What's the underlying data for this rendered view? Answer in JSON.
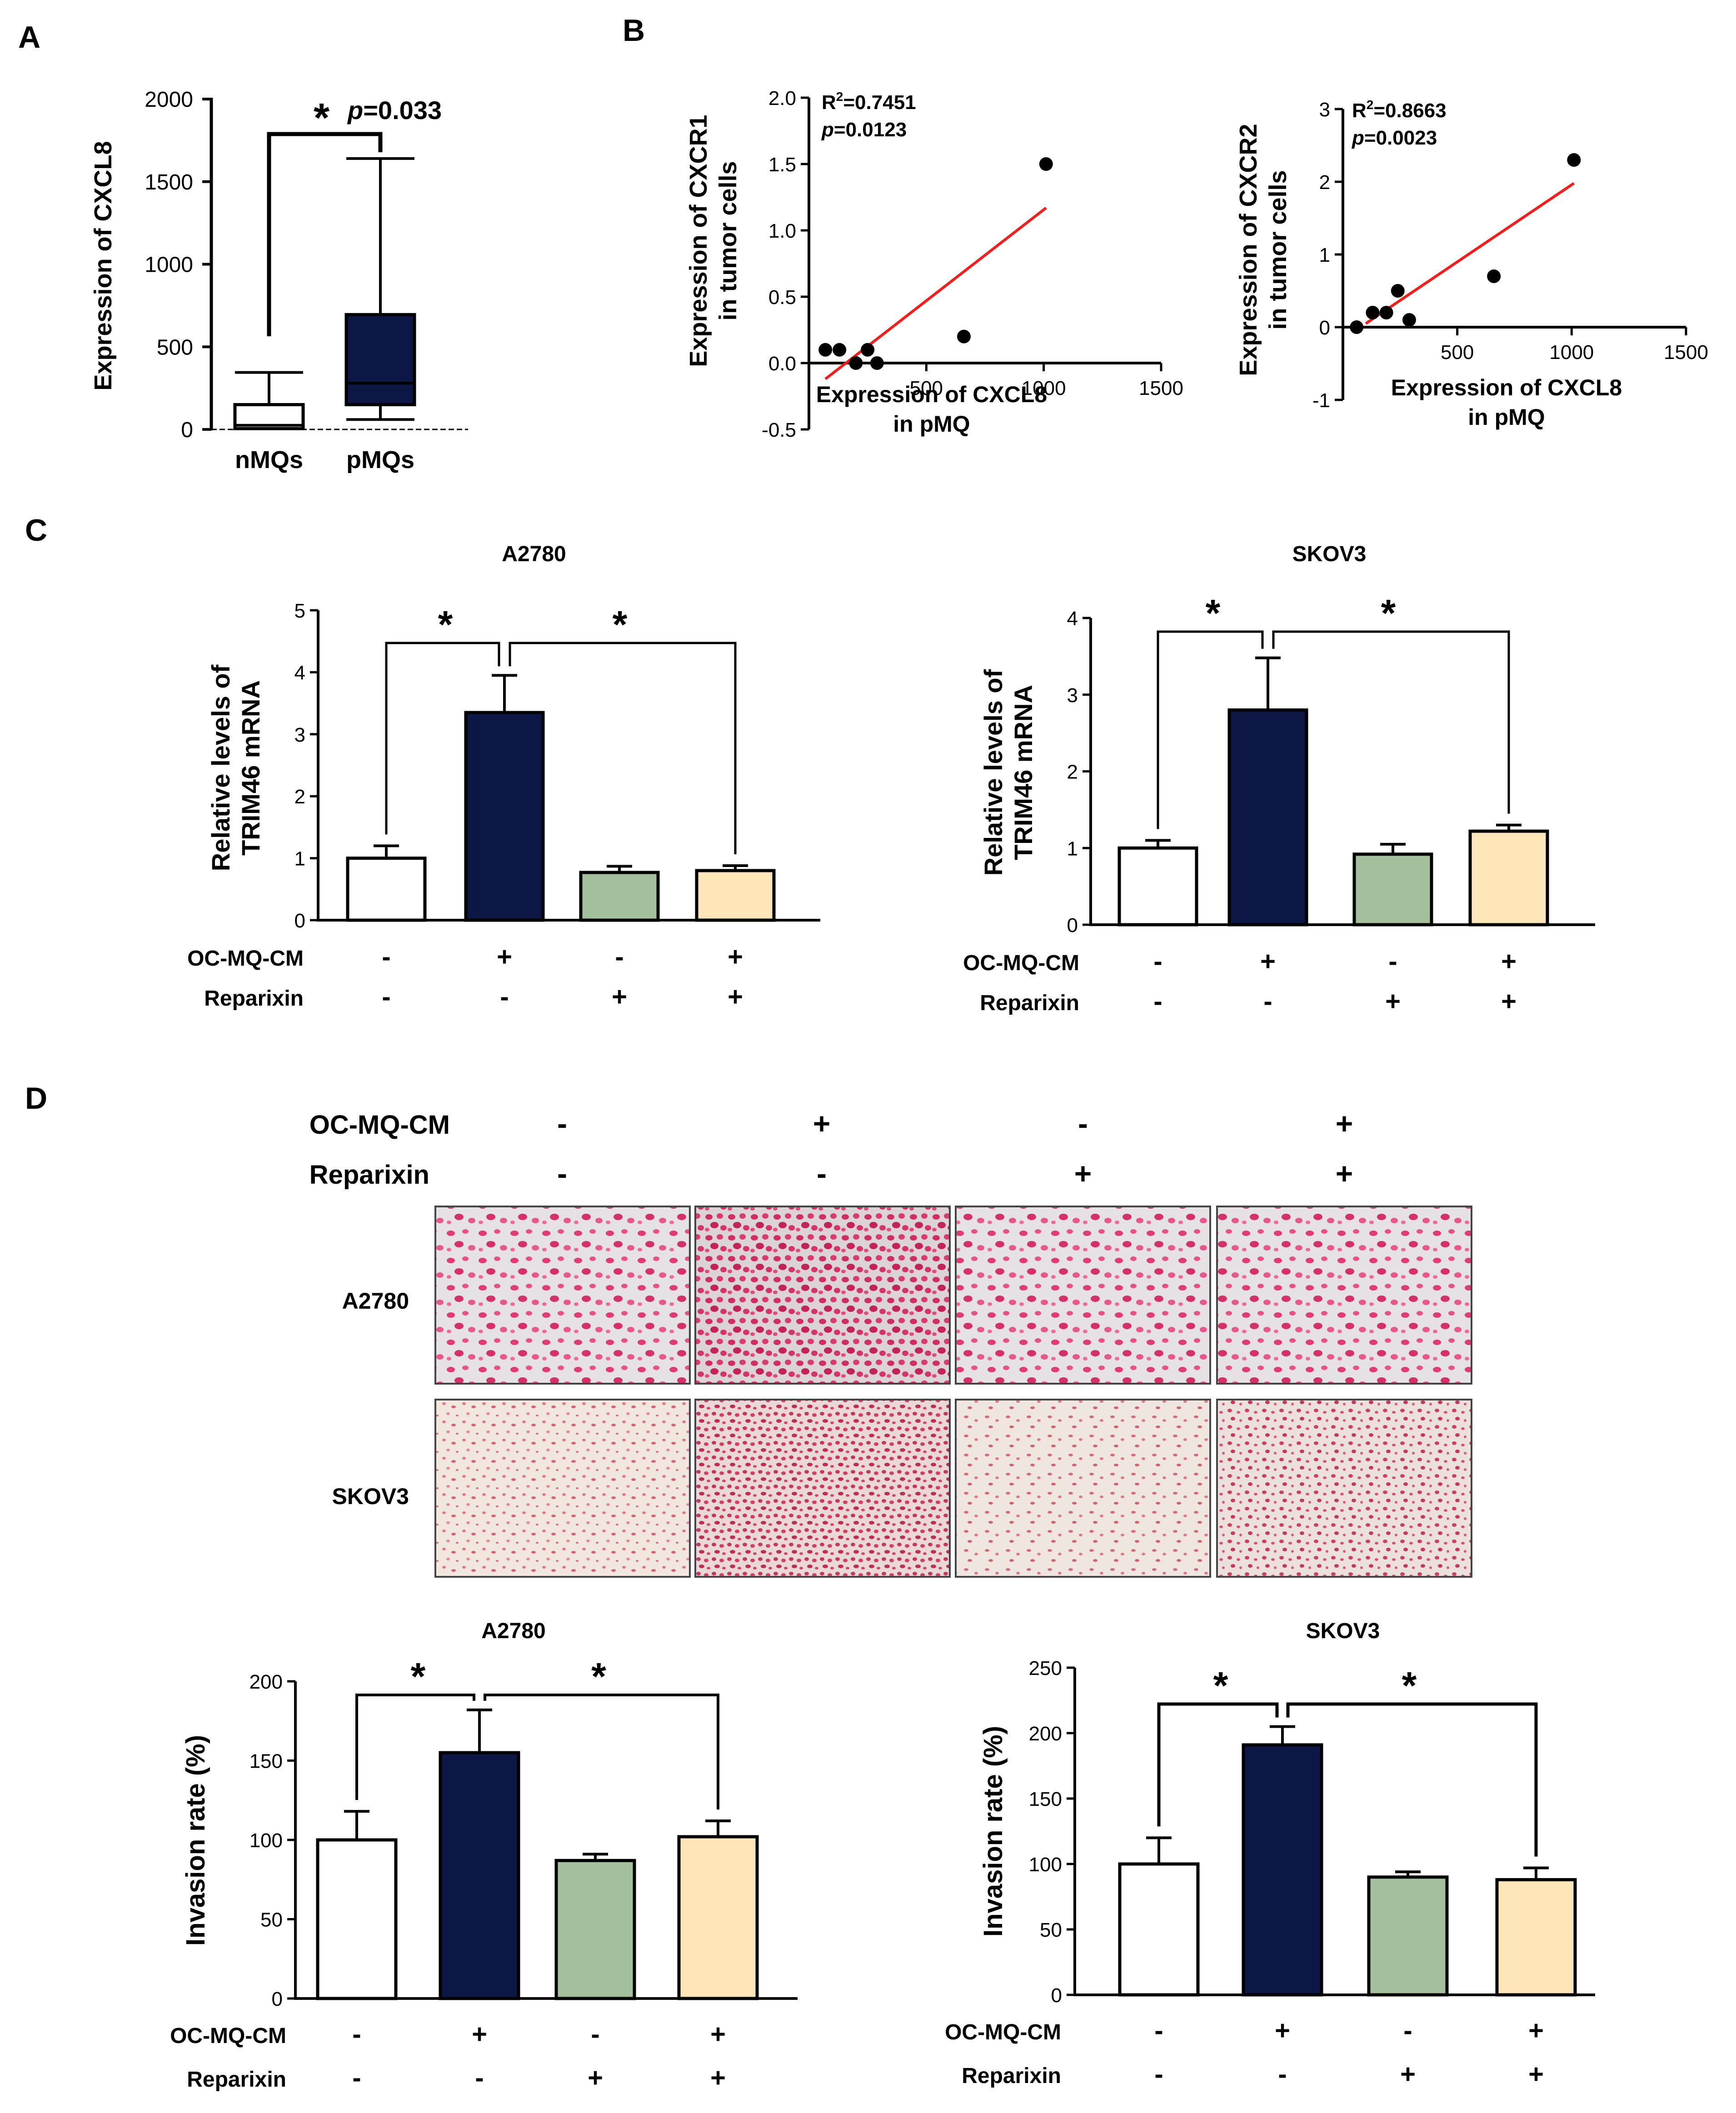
{
  "colors": {
    "black": "#000000",
    "white": "#ffffff",
    "navy": "#0c1746",
    "green": "#a4bf9b",
    "beige": "#fde5b8",
    "fit_line": "#ff1a1a"
  },
  "panels": {
    "A": "A",
    "B": "B",
    "C": "C",
    "D": "D"
  },
  "chart_data": [
    {
      "id": "A",
      "type": "box",
      "ylabel": "Expression of CXCL8",
      "categories": [
        "nMQs",
        "pMQs"
      ],
      "ylim": [
        0,
        2000
      ],
      "yticks": [
        0,
        500,
        1000,
        1500,
        2000
      ],
      "boxes": [
        {
          "min": 0,
          "q1": 5,
          "median": 25,
          "q3": 150,
          "max": 345,
          "fill": "#ffffff"
        },
        {
          "min": 60,
          "q1": 150,
          "median": 280,
          "q3": 695,
          "max": 1640,
          "fill": "#0c1746"
        }
      ],
      "annotation": {
        "star": "*",
        "p_prefix": "p",
        "p_value": "=0.033",
        "from": 0,
        "to": 1
      }
    },
    {
      "id": "B1",
      "type": "scatter",
      "ylabel_line1": "Expression of CXCR1",
      "ylabel_line2": "in tumor cells",
      "xlabel_line1": "Expression of CXCL8",
      "xlabel_line2": "in pMQ",
      "xlim": [
        0,
        1500
      ],
      "ylim": [
        -0.5,
        2.0
      ],
      "xticks": [
        500,
        1000,
        1500
      ],
      "yticks": [
        -0.5,
        0.0,
        0.5,
        1.0,
        1.5,
        2.0
      ],
      "ytick_labels": [
        "-0.5",
        "0.0",
        "0.5",
        "1.0",
        "1.5",
        "2.0"
      ],
      "r2_text": "R",
      "r2_sup": "2",
      "r2_value": "=0.7451",
      "p_prefix": "p",
      "p_value": "=0.0123",
      "points": [
        {
          "x": 70,
          "y": 0.1
        },
        {
          "x": 130,
          "y": 0.1
        },
        {
          "x": 200,
          "y": 0.0
        },
        {
          "x": 250,
          "y": 0.1
        },
        {
          "x": 290,
          "y": 0.0
        },
        {
          "x": 660,
          "y": 0.2
        },
        {
          "x": 1010,
          "y": 1.5
        }
      ],
      "fit": {
        "x1": 70,
        "y1": -0.12,
        "x2": 1010,
        "y2": 1.17
      }
    },
    {
      "id": "B2",
      "type": "scatter",
      "ylabel_line1": "Expression of CXCR2",
      "ylabel_line2": "in tumor cells",
      "xlabel_line1": "Expression of CXCL8",
      "xlabel_line2": "in pMQ",
      "xlim": [
        0,
        1500
      ],
      "ylim": [
        -1,
        3
      ],
      "xticks": [
        500,
        1000,
        1500
      ],
      "yticks": [
        -1,
        0,
        1,
        2,
        3
      ],
      "ytick_labels": [
        "-1",
        "0",
        "1",
        "2",
        "3"
      ],
      "r2_text": "R",
      "r2_sup": "2",
      "r2_value": "=0.8663",
      "p_prefix": "p",
      "p_value": "=0.0023",
      "points": [
        {
          "x": 60,
          "y": 0.0
        },
        {
          "x": 130,
          "y": 0.2
        },
        {
          "x": 190,
          "y": 0.2
        },
        {
          "x": 240,
          "y": 0.5
        },
        {
          "x": 290,
          "y": 0.1
        },
        {
          "x": 660,
          "y": 0.7
        },
        {
          "x": 1010,
          "y": 2.3
        }
      ],
      "fit": {
        "x1": 100,
        "y1": 0.05,
        "x2": 1010,
        "y2": 1.98
      }
    },
    {
      "id": "C1",
      "type": "bar",
      "title": "A2780",
      "ylabel_line1": "Relative levels of",
      "ylabel_line2": "TRIM46 mRNA",
      "ylim": [
        0,
        5
      ],
      "yticks": [
        0,
        1,
        2,
        3,
        4,
        5
      ],
      "values": [
        1.0,
        3.35,
        0.77,
        0.8
      ],
      "errors": [
        0.2,
        0.6,
        0.1,
        0.08
      ],
      "fills": [
        "#ffffff",
        "#0c1746",
        "#a4bf9b",
        "#fde5b8"
      ],
      "stars": [
        "*",
        "*"
      ],
      "row1_label": "OC-MQ-CM",
      "row2_label": "Reparixin",
      "row1_signs": [
        "-",
        "+",
        "-",
        "+"
      ],
      "row2_signs": [
        "-",
        "-",
        "+",
        "+"
      ]
    },
    {
      "id": "C2",
      "type": "bar",
      "title": "SKOV3",
      "ylabel_line1": "Relative levels of",
      "ylabel_line2": "TRIM46 mRNA",
      "ylim": [
        0,
        4
      ],
      "yticks": [
        0,
        1,
        2,
        3,
        4
      ],
      "values": [
        1.0,
        2.8,
        0.92,
        1.22
      ],
      "errors": [
        0.1,
        0.68,
        0.13,
        0.08
      ],
      "fills": [
        "#ffffff",
        "#0c1746",
        "#a4bf9b",
        "#fde5b8"
      ],
      "stars": [
        "*",
        "*"
      ],
      "row1_label": "OC-MQ-CM",
      "row2_label": "Reparixin",
      "row1_signs": [
        "-",
        "+",
        "-",
        "+"
      ],
      "row2_signs": [
        "-",
        "-",
        "+",
        "+"
      ]
    },
    {
      "id": "D1",
      "type": "bar",
      "title": "A2780",
      "ylabel": "Invasion rate (%)",
      "ylim": [
        0,
        200
      ],
      "yticks": [
        0,
        50,
        100,
        150,
        200
      ],
      "values": [
        100,
        155,
        87,
        102
      ],
      "errors": [
        18,
        27,
        4,
        10
      ],
      "fills": [
        "#ffffff",
        "#0c1746",
        "#a4bf9b",
        "#fde5b8"
      ],
      "stars": [
        "*",
        "*"
      ],
      "row1_label": "OC-MQ-CM",
      "row2_label": "Reparixin",
      "row1_signs": [
        "-",
        "+",
        "-",
        "+"
      ],
      "row2_signs": [
        "-",
        "-",
        "+",
        "+"
      ]
    },
    {
      "id": "D2",
      "type": "bar",
      "title": "SKOV3",
      "ylabel": "Invasion rate (%)",
      "ylim": [
        0,
        250
      ],
      "yticks": [
        0,
        50,
        100,
        150,
        200,
        250
      ],
      "values": [
        100,
        191,
        90,
        88
      ],
      "errors": [
        20,
        14,
        4,
        9
      ],
      "fills": [
        "#ffffff",
        "#0c1746",
        "#a4bf9b",
        "#fde5b8"
      ],
      "stars": [
        "*",
        "*"
      ],
      "row1_label": "OC-MQ-CM",
      "row2_label": "Reparixin",
      "row1_signs": [
        "-",
        "+",
        "-",
        "+"
      ],
      "row2_signs": [
        "-",
        "-",
        "+",
        "+"
      ]
    }
  ],
  "micrographs": {
    "row1_label": "OC-MQ-CM",
    "row2_label": "Reparixin",
    "row1_signs": [
      "-",
      "+",
      "-",
      "+"
    ],
    "row2_signs": [
      "-",
      "-",
      "+",
      "+"
    ],
    "cell_lines": [
      "A2780",
      "SKOV3"
    ]
  }
}
